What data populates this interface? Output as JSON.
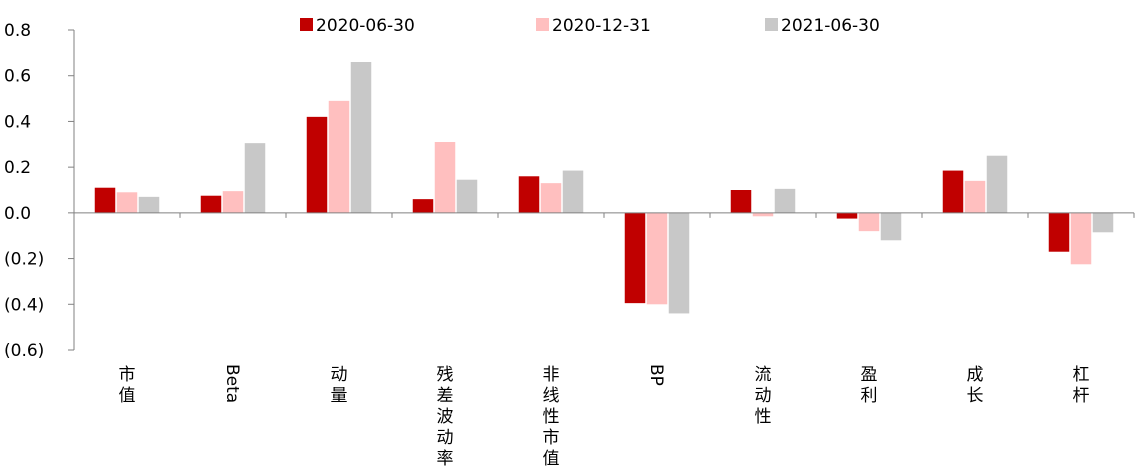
{
  "chart_data": {
    "type": "bar",
    "categories": [
      "市值",
      "Beta",
      "动量",
      "残差波动率",
      "非线性市值",
      "BP",
      "流动性",
      "盈利",
      "成长",
      "杠杆"
    ],
    "series": [
      {
        "name": "2020-06-30",
        "color": "#C00000",
        "values": [
          0.11,
          0.075,
          0.42,
          0.06,
          0.16,
          -0.395,
          0.1,
          -0.025,
          0.185,
          -0.17
        ]
      },
      {
        "name": "2020-12-31",
        "color": "#FFBFBF",
        "values": [
          0.09,
          0.095,
          0.49,
          0.31,
          0.13,
          -0.4,
          -0.015,
          -0.08,
          0.14,
          -0.225
        ]
      },
      {
        "name": "2021-06-30",
        "color": "#C8C8C8",
        "values": [
          0.07,
          0.305,
          0.66,
          0.145,
          0.185,
          -0.44,
          0.105,
          -0.12,
          0.25,
          -0.085
        ]
      }
    ],
    "ylim": [
      -0.6,
      0.8
    ],
    "yticks": [
      "0.8",
      "0.6",
      "0.4",
      "0.2",
      "0.0",
      "(0.2)",
      "(0.4)",
      "(0.6)"
    ],
    "legend_position": "top",
    "grid": false
  }
}
